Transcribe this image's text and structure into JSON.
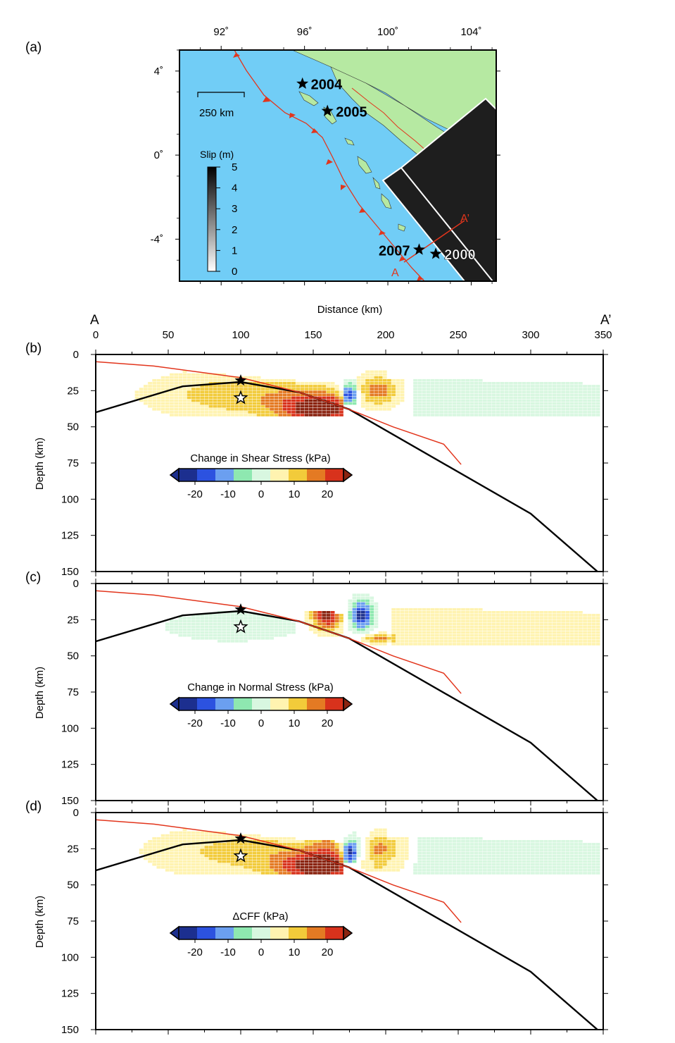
{
  "map": {
    "panel_label": "(a)",
    "lon_ticks": [
      {
        "value": 92,
        "label": "92˚"
      },
      {
        "value": 96,
        "label": "96˚"
      },
      {
        "value": 100,
        "label": "100˚"
      },
      {
        "value": 104,
        "label": "104˚"
      }
    ],
    "lat_ticks": [
      {
        "value": 4,
        "label": "4˚"
      },
      {
        "value": 0,
        "label": "0˚"
      },
      {
        "value": -4,
        "label": "-4˚"
      }
    ],
    "extent": {
      "lon": [
        90,
        105.2
      ],
      "lat": [
        -6,
        5
      ]
    },
    "scale_bar_label": "250 km",
    "slip_colorbar": {
      "title": "Slip (m)",
      "ticks": [
        "5",
        "4",
        "3",
        "2",
        "1",
        "0"
      ]
    },
    "events": [
      {
        "label": "2004",
        "lon": 95.9,
        "lat": 3.4
      },
      {
        "label": "2005",
        "lon": 97.1,
        "lat": 2.1
      },
      {
        "label": "2007",
        "lon": 101.5,
        "lat": -4.5
      },
      {
        "label": "2000",
        "lon": 102.3,
        "lat": -4.7
      }
    ],
    "profile": {
      "start_label": "A",
      "end_label": "A’"
    },
    "colors": {
      "ocean": "#71cdf6",
      "land": "#b6e9a2",
      "trench": "#e2351c",
      "rupture": "#1e1e1e"
    }
  },
  "cross_sections": {
    "x_axis_title": "Distance (km)",
    "x_ticks": [
      "0",
      "50",
      "100",
      "150",
      "200",
      "250",
      "300",
      "350"
    ],
    "end_label_left": "A",
    "end_label_right": "A’",
    "y_axis_title": "Depth (km)",
    "y_ticks": [
      "0",
      "25",
      "50",
      "75",
      "100",
      "125",
      "150"
    ],
    "x_range": [
      0,
      350
    ],
    "y_range": [
      0,
      150
    ],
    "colorbar_ticks": [
      "-20",
      "-10",
      "0",
      "10",
      "20"
    ],
    "colorbar_colors": [
      "#1c2f8f",
      "#2c52e0",
      "#6b9ff0",
      "#8ee8b0",
      "#d8f7e0",
      "#ffffff",
      "#fff3b0",
      "#f2cb3a",
      "#e47a23",
      "#d8321c",
      "#8a2411"
    ],
    "slab_interface": [
      [
        0,
        40
      ],
      [
        60,
        22
      ],
      [
        100,
        19
      ],
      [
        140,
        26
      ],
      [
        175,
        38
      ],
      [
        300,
        110
      ],
      [
        346,
        150
      ]
    ],
    "plate_boundary": [
      [
        0,
        5
      ],
      [
        40,
        8
      ],
      [
        100,
        16
      ],
      [
        140,
        26
      ],
      [
        175,
        38
      ],
      [
        205,
        50
      ],
      [
        240,
        62
      ],
      [
        252,
        76
      ]
    ],
    "star_filled": {
      "x": 100,
      "depth": 18
    },
    "star_open": {
      "x": 100,
      "depth": 30
    },
    "panels": [
      {
        "label": "(b)",
        "colorbar_title": "Change in Shear Stress (kPa)"
      },
      {
        "label": "(c)",
        "colorbar_title": "Change in Normal Stress (kPa)"
      },
      {
        "label": "(d)",
        "colorbar_title": "ΔCFF (kPa)"
      }
    ]
  }
}
